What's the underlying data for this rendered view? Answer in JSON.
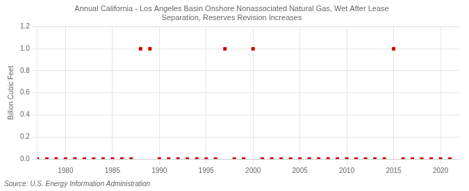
{
  "chart_data": {
    "type": "scatter",
    "title": "Annual California - Los Angeles Basin Onshore Nonassociated Natural Gas, Wet After Lease\nSeparation, Reserves Revision Increases",
    "y_label": "Billion Cubic Feet",
    "annotation": "Source: U.S. Energy Information Administration",
    "x": [
      1977,
      1978,
      1979,
      1980,
      1981,
      1982,
      1983,
      1984,
      1985,
      1986,
      1987,
      1988,
      1989,
      1990,
      1991,
      1992,
      1993,
      1994,
      1995,
      1996,
      1997,
      1998,
      1999,
      2000,
      2001,
      2002,
      2003,
      2004,
      2005,
      2006,
      2007,
      2008,
      2009,
      2010,
      2011,
      2012,
      2013,
      2014,
      2015,
      2016,
      2017,
      2018,
      2019,
      2020,
      2021
    ],
    "values": [
      0.0,
      0.0,
      0.0,
      0.0,
      0.0,
      0.0,
      0.0,
      0.0,
      0.0,
      0.0,
      0.0,
      1.0,
      1.0,
      0.0,
      0.0,
      0.0,
      0.0,
      0.0,
      0.0,
      0.0,
      1.0,
      0.0,
      0.0,
      1.0,
      0.0,
      0.0,
      0.0,
      0.0,
      0.0,
      0.0,
      0.0,
      0.0,
      0.0,
      0.0,
      0.0,
      0.0,
      0.0,
      0.0,
      1.0,
      0.0,
      0.0,
      0.0,
      0.0,
      0.0,
      0.0
    ],
    "color": "#cc0000",
    "marker": "square",
    "xlim": [
      1977,
      2022
    ],
    "xticks": [
      1980,
      1985,
      1990,
      1995,
      2000,
      2005,
      2010,
      2015,
      2020
    ],
    "ylim": [
      0.0,
      1.2
    ],
    "yticks": [
      {
        "value": 0.0,
        "label": "0.0"
      },
      0.2,
      0.4,
      0.6,
      0.8,
      {
        "value": 1.0,
        "label": "1.0"
      },
      1.2
    ],
    "grid": true
  }
}
